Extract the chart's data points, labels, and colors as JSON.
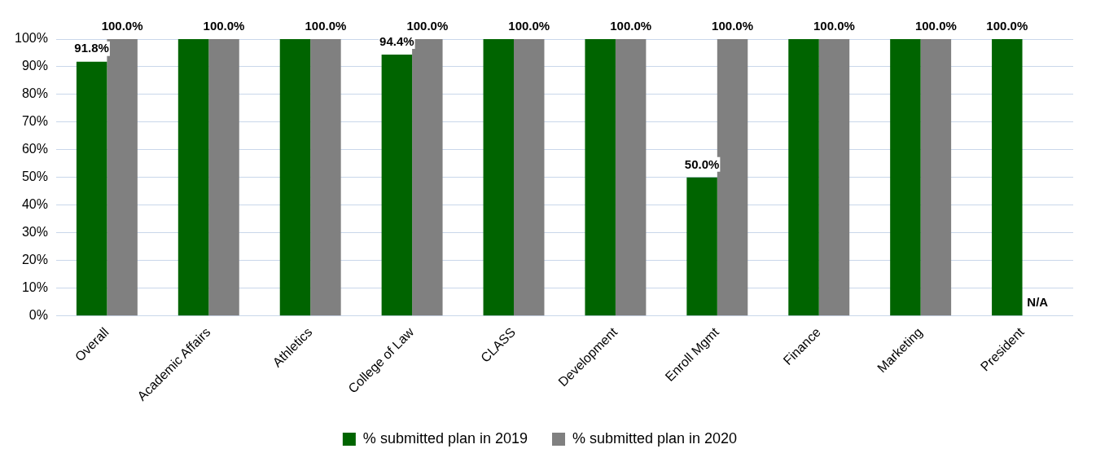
{
  "chart_data": {
    "type": "bar",
    "categories": [
      "Overall",
      "Academic Affairs",
      "Athletics",
      "College of Law",
      "CLASS",
      "Development",
      "Enroll Mgmt",
      "Finance",
      "Marketing",
      "President"
    ],
    "series": [
      {
        "name": "% submitted plan in 2019",
        "color": "#006400",
        "values": [
          91.8,
          100,
          100,
          94.4,
          100,
          100,
          50,
          100,
          100,
          100
        ],
        "value_labels": [
          "91.8%",
          null,
          null,
          "94.4%",
          null,
          null,
          "50.0%",
          null,
          null,
          "100.0%"
        ]
      },
      {
        "name": "% submitted plan in 2020",
        "color": "#808080",
        "values": [
          100,
          100,
          100,
          100,
          100,
          100,
          100,
          100,
          100,
          null
        ],
        "value_labels": [
          "100.0%",
          "100.0%",
          "100.0%",
          "100.0%",
          "100.0%",
          "100.0%",
          "100.0%",
          "100.0%",
          "100.0%",
          "N/A"
        ]
      }
    ],
    "ylim": [
      0,
      100
    ],
    "yticks": [
      {
        "value": 0,
        "label": "0%"
      },
      {
        "value": 10,
        "label": "10%"
      },
      {
        "value": 20,
        "label": "20%"
      },
      {
        "value": 30,
        "label": "30%"
      },
      {
        "value": 40,
        "label": "40%"
      },
      {
        "value": 50,
        "label": "50%"
      },
      {
        "value": 60,
        "label": "60%"
      },
      {
        "value": 70,
        "label": "70%"
      },
      {
        "value": 80,
        "label": "80%"
      },
      {
        "value": 90,
        "label": "90%"
      },
      {
        "value": 100,
        "label": "100%"
      }
    ],
    "grid": "y",
    "legend": "bottom"
  }
}
